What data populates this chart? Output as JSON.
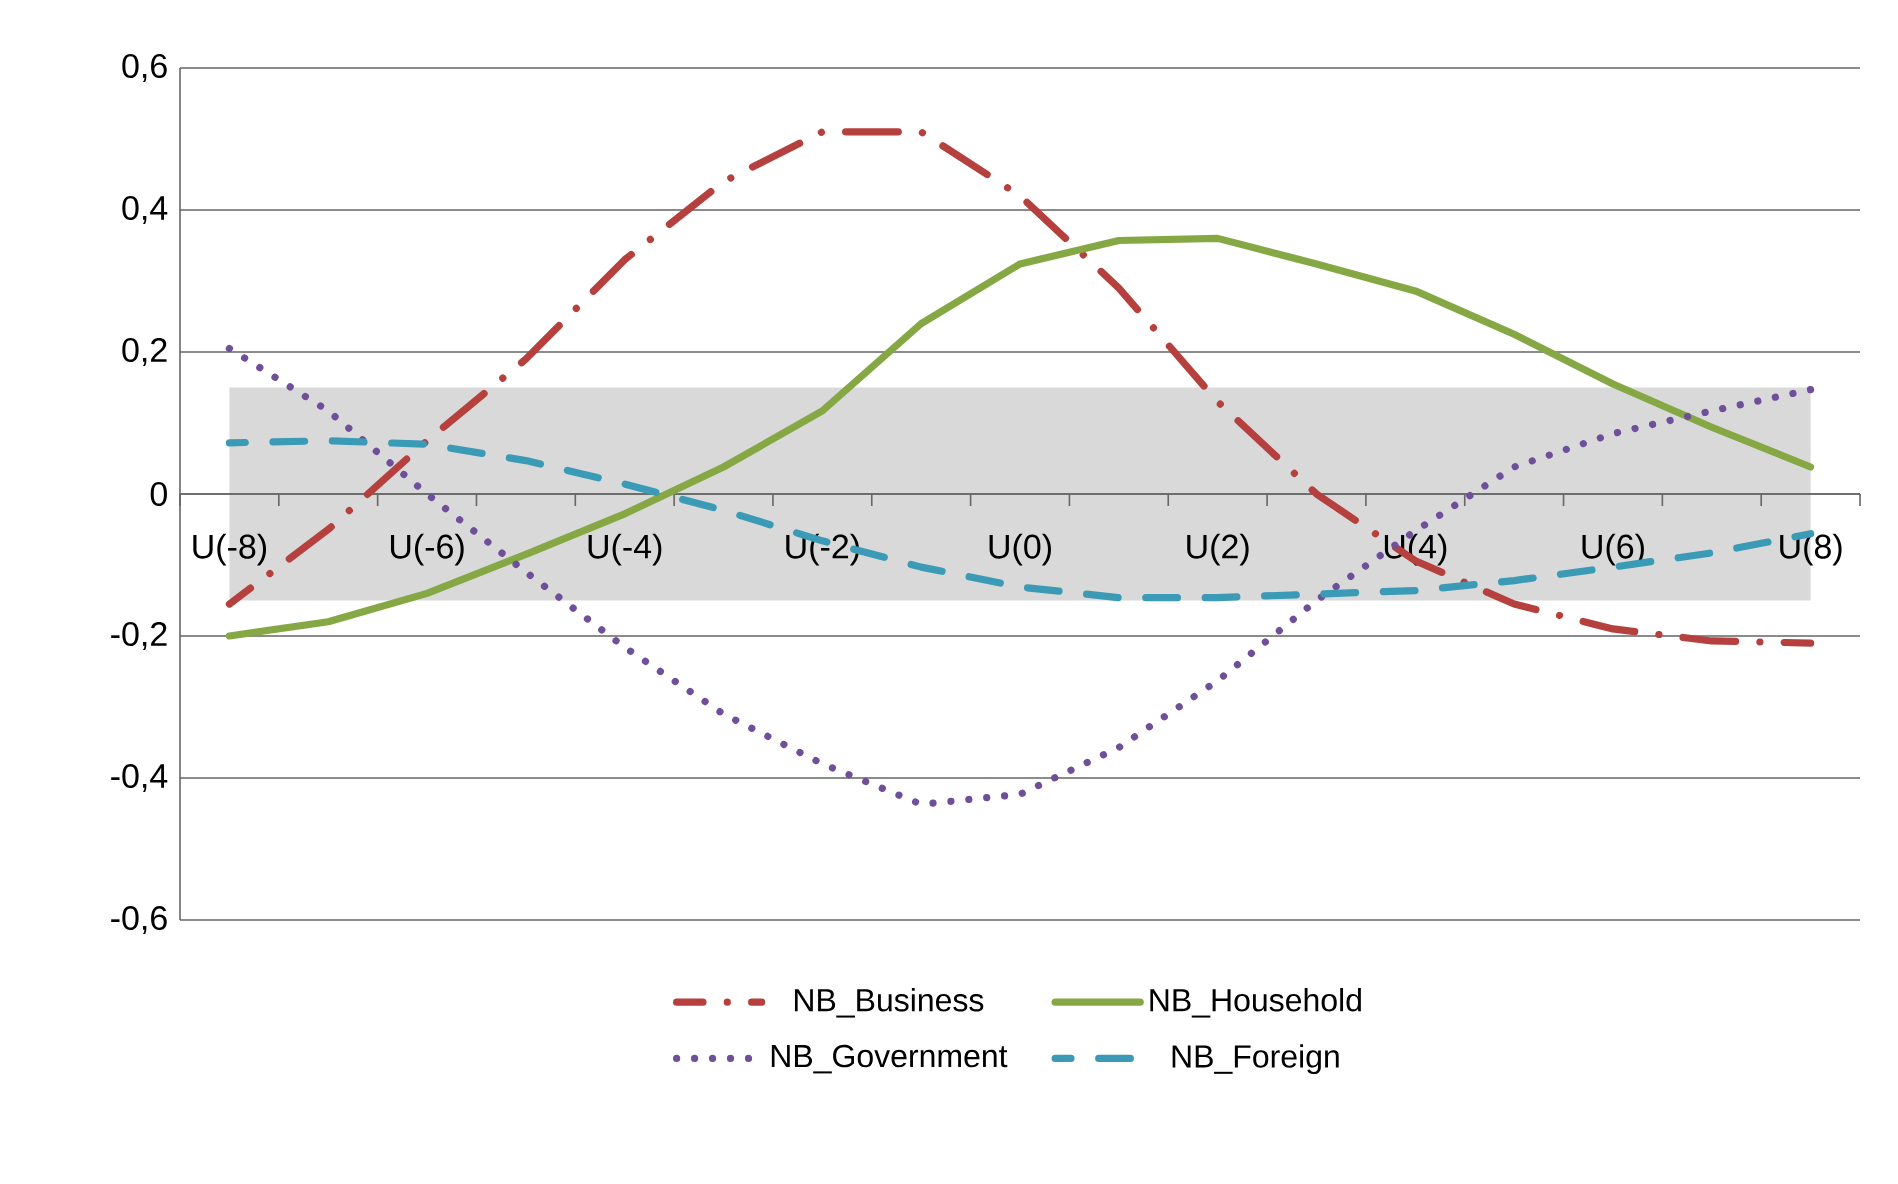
{
  "chart_data": {
    "type": "line",
    "categories": [
      "U(-8)",
      null,
      "U(-6)",
      null,
      "U(-4)",
      null,
      "U(-2)",
      null,
      "U(0)",
      null,
      "U(2)",
      null,
      "U(4)",
      null,
      "U(6)",
      null,
      "U(8)"
    ],
    "series": [
      {
        "name": "NB_Business",
        "color": "#b5403d",
        "line_style": "dashdot",
        "values": [
          -0.155,
          -0.05,
          0.075,
          0.19,
          0.33,
          0.44,
          0.51,
          0.51,
          0.42,
          0.29,
          0.13,
          0.0,
          -0.094,
          -0.155,
          -0.19,
          -0.207,
          -0.21
        ]
      },
      {
        "name": "NB_Household",
        "color": "#86a844",
        "line_style": "solid",
        "values": [
          -0.2,
          -0.18,
          -0.14,
          -0.085,
          -0.028,
          0.038,
          0.117,
          0.24,
          0.324,
          0.357,
          0.36,
          0.324,
          0.286,
          0.225,
          0.155,
          0.094,
          0.038
        ]
      },
      {
        "name": "NB_Government",
        "color": "#6f4f9a",
        "line_style": "dotted",
        "values": [
          0.205,
          0.117,
          0.0,
          -0.11,
          -0.216,
          -0.31,
          -0.38,
          -0.437,
          -0.423,
          -0.357,
          -0.263,
          -0.15,
          -0.052,
          0.038,
          0.085,
          0.117,
          0.147
        ]
      },
      {
        "name": "NB_Foreign",
        "color": "#3b9bb6",
        "line_style": "dashed",
        "values": [
          0.072,
          0.075,
          0.07,
          0.047,
          0.014,
          -0.023,
          -0.066,
          -0.103,
          -0.131,
          -0.146,
          -0.146,
          -0.141,
          -0.136,
          -0.122,
          -0.103,
          -0.083,
          -0.056
        ]
      }
    ],
    "ylim": [
      -0.6,
      0.6
    ],
    "yticks": [
      {
        "value": -0.6,
        "label": "-0,6"
      },
      {
        "value": -0.4,
        "label": "-0,4"
      },
      {
        "value": -0.2,
        "label": "-0,2"
      },
      0,
      {
        "value": 0.2,
        "label": "0,2"
      },
      {
        "value": 0.4,
        "label": "0,4"
      },
      {
        "value": 0.6,
        "label": "0,6"
      }
    ],
    "bands": [
      {
        "axis": "y",
        "from": -0.15,
        "to": 0.15,
        "color": "#d9d9d9"
      }
    ],
    "grid": "y",
    "legend": "bottom",
    "marker": "none"
  }
}
